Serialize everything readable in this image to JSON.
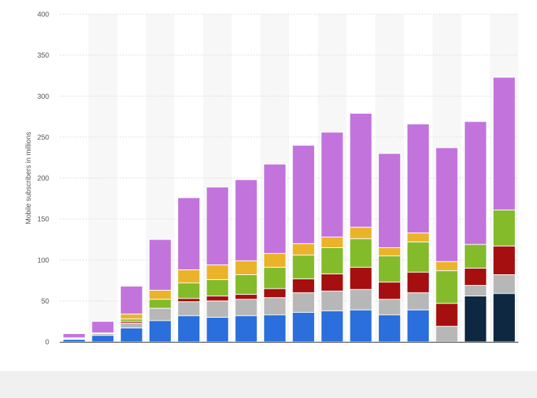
{
  "chart_data": {
    "type": "bar",
    "stacked": true,
    "ylabel": "Mobile subscribers in millions",
    "xlabel": "",
    "ylim": [
      0,
      400
    ],
    "yticks": [
      0,
      50,
      100,
      150,
      200,
      250,
      300,
      350,
      400
    ],
    "y_tick_labels": [
      "0",
      "50",
      "100",
      "150",
      "200",
      "250",
      "300",
      "350",
      "400"
    ],
    "grid": true,
    "legend": "none",
    "category_count": 16,
    "series": [
      {
        "color": "#2a6fdb",
        "values": [
          3,
          8,
          17,
          26,
          32,
          30,
          32,
          33,
          36,
          38,
          39,
          33,
          39,
          0,
          0,
          0
        ]
      },
      {
        "color": "#0e2841",
        "values": [
          0,
          0,
          0,
          0,
          0,
          0,
          0,
          0,
          0,
          0,
          0,
          0,
          0,
          0,
          56,
          59
        ]
      },
      {
        "color": "#b7b7b7",
        "values": [
          1,
          2,
          6,
          15,
          17,
          20,
          20,
          21,
          24,
          24,
          25,
          19,
          21,
          19,
          13,
          23
        ]
      },
      {
        "color": "#a50f0f",
        "values": [
          0,
          0,
          2,
          0,
          4,
          6,
          6,
          11,
          17,
          21,
          27,
          21,
          25,
          28,
          21,
          35
        ]
      },
      {
        "color": "#84bb2a",
        "values": [
          0,
          0,
          3,
          11,
          19,
          20,
          24,
          26,
          29,
          32,
          35,
          32,
          37,
          40,
          29,
          44
        ]
      },
      {
        "color": "#ebb32a",
        "values": [
          1,
          1,
          6,
          11,
          16,
          18,
          17,
          17,
          14,
          13,
          14,
          10,
          11,
          11,
          0,
          0
        ]
      },
      {
        "color": "#c274dc",
        "values": [
          5,
          14,
          34,
          62,
          88,
          95,
          99,
          109,
          120,
          128,
          139,
          115,
          133,
          139,
          150,
          162
        ]
      }
    ]
  }
}
